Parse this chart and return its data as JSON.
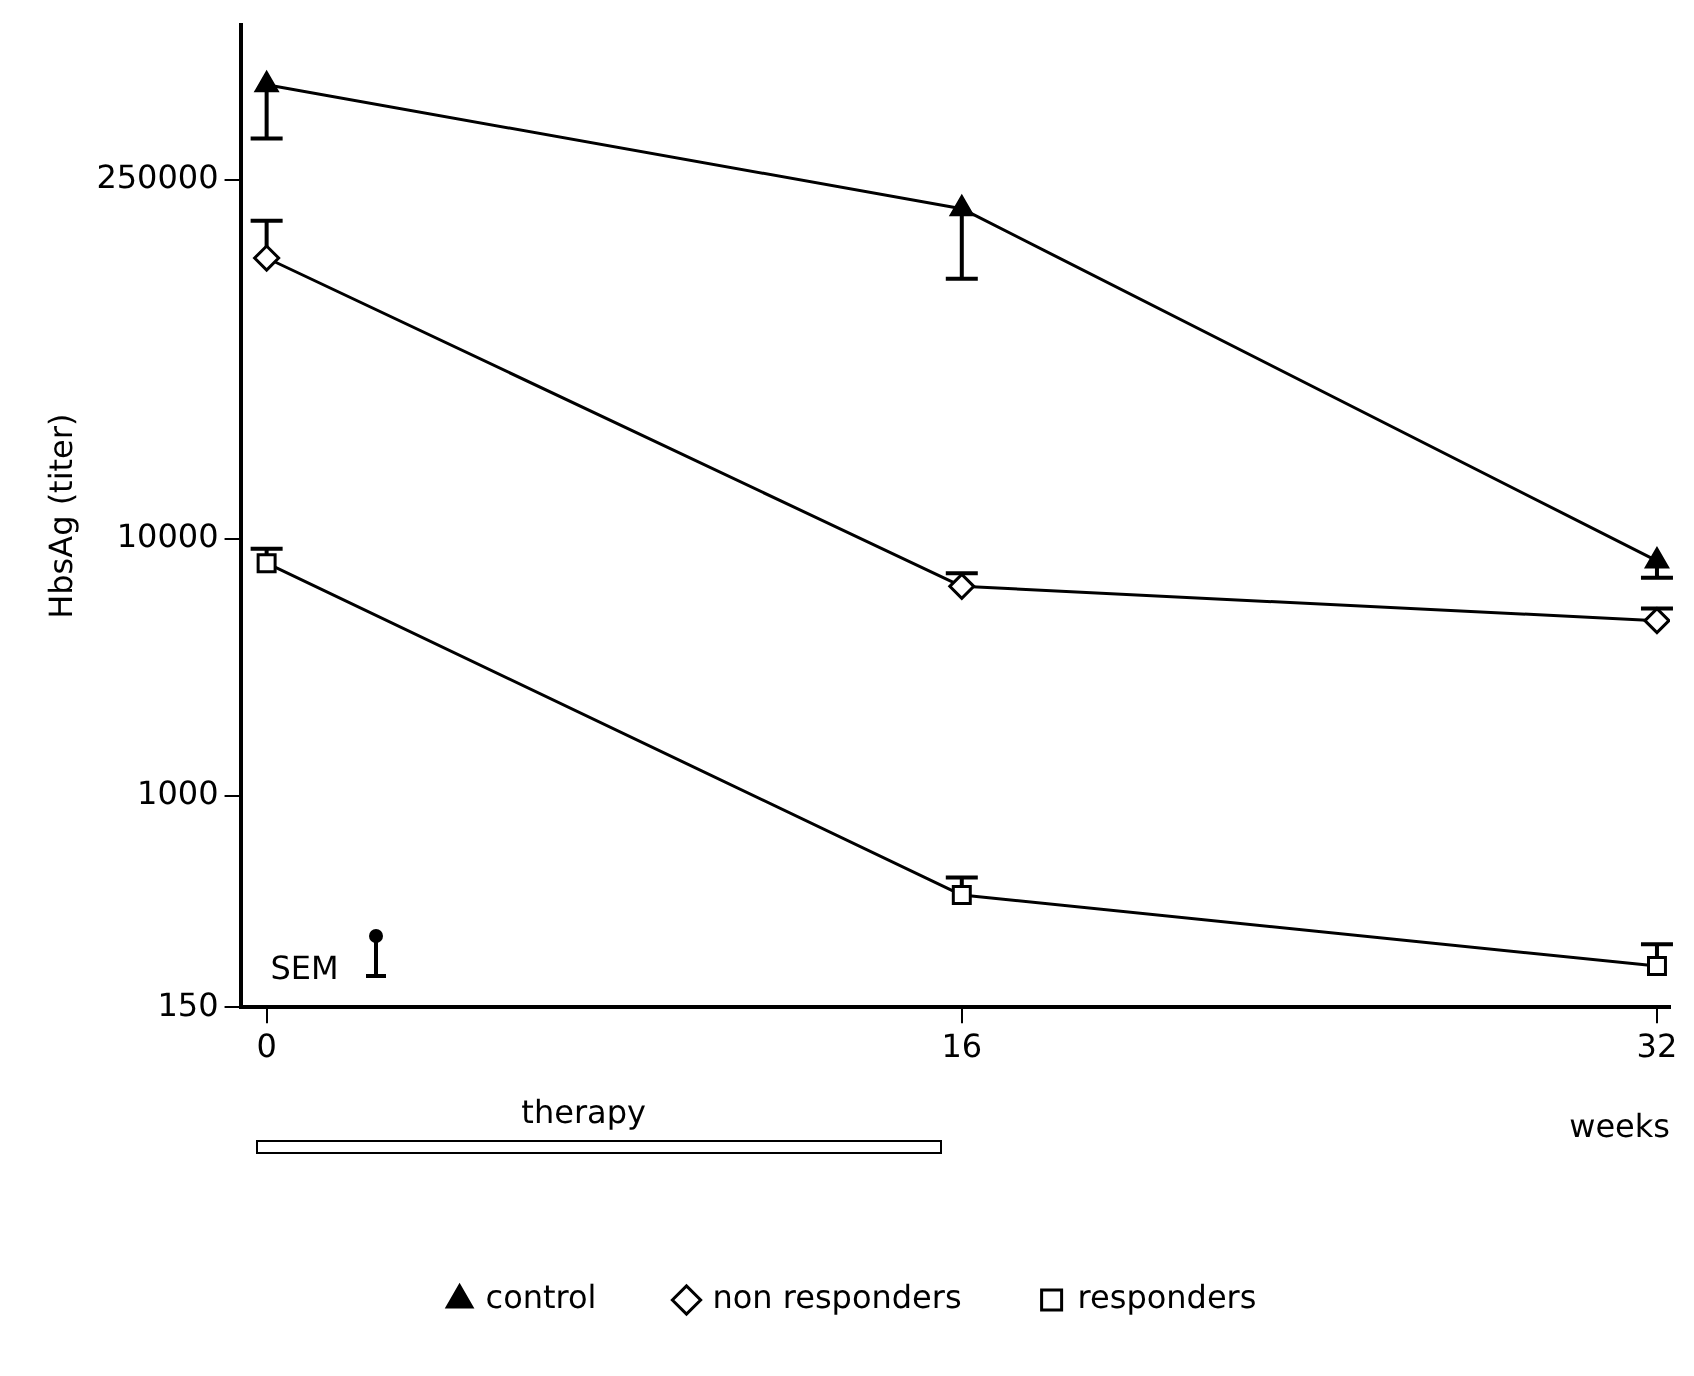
{
  "chart_data": {
    "type": "line",
    "xlabel": "weeks",
    "ylabel": "HbsAg (titer)",
    "x": [
      0,
      16,
      32
    ],
    "series": [
      {
        "name": "control",
        "color": "#000000",
        "marker": "triangle",
        "values": [
          586000,
          193000,
          8200
        ],
        "errors": [
          [
            362000,
            586000
          ],
          [
            103000,
            193000
          ],
          [
            7060,
            8200
          ]
        ]
      },
      {
        "name": "non responders",
        "color": "#000000",
        "marker": "diamond",
        "values": [
          124000,
          6530,
          4800
        ],
        "errors": [
          [
            124000,
            173000
          ],
          [
            6530,
            7350
          ],
          [
            4800,
            5350
          ]
        ]
      },
      {
        "name": "responders",
        "color": "#000000",
        "marker": "square",
        "values": [
          8040,
          410,
          217
        ],
        "errors": [
          [
            8040,
            9140
          ],
          [
            410,
            480
          ],
          [
            217,
            264
          ]
        ]
      }
    ],
    "log": "y",
    "xlim": [
      -0.6,
      32.3
    ],
    "xticks": [
      0,
      16,
      32
    ],
    "ylim": [
      150,
      1000000
    ],
    "yticks": [
      150,
      1000,
      10000,
      250000
    ],
    "annotations": [
      "SEM",
      "therapy"
    ],
    "grid": false,
    "legend": "bottom",
    "line_style": "solid"
  }
}
